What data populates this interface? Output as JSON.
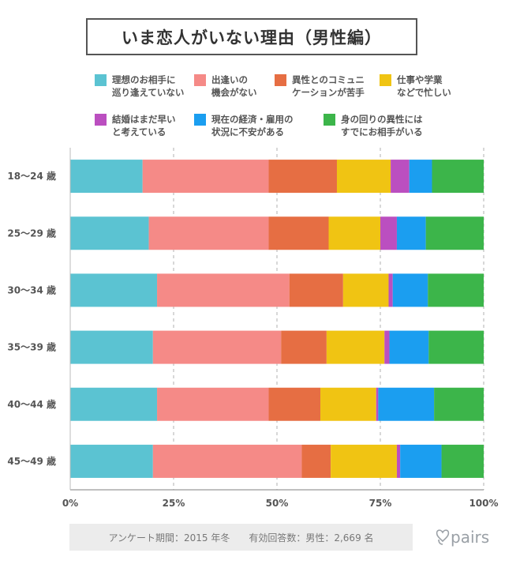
{
  "title": "いま恋人がいない理由（男性編）",
  "footer_text": "アンケート期間：2015 年冬　　有効回答数：男性：2,669 名",
  "logo_text": "pairs",
  "logo_icon": "pairs-heart-icon",
  "legend": [
    {
      "label": "理想のお相手に\n巡り逢えていない",
      "color": "#5bc3d2"
    },
    {
      "label": "出逢いの\n機会がない",
      "color": "#f58a87"
    },
    {
      "label": "異性とのコミュニ\nケーションが苦手",
      "color": "#e66e43"
    },
    {
      "label": "仕事や学業\nなどで忙しい",
      "color": "#f0c413"
    },
    {
      "label": "結婚はまだ早い\nと考えている",
      "color": "#bb4fc0"
    },
    {
      "label": "現在の経済・雇用の\n状況に不安がある",
      "color": "#1b9ef0"
    },
    {
      "label": "身の回りの異性には\nすでにお相手がいる",
      "color": "#3cb54a"
    }
  ],
  "chart_data": {
    "type": "bar",
    "orientation": "horizontal",
    "stacked": true,
    "title": "いま恋人がいない理由（男性編）",
    "xlabel": "",
    "ylabel": "",
    "xlim": [
      0,
      100
    ],
    "x_ticks": [
      "0%",
      "25%",
      "50%",
      "75%",
      "100%"
    ],
    "grid": "vertical-dashed",
    "legend_position": "top",
    "categories": [
      "18〜24 歳",
      "25〜29 歳",
      "30〜34 歳",
      "35〜39 歳",
      "40〜44 歳",
      "45〜49 歳"
    ],
    "series": [
      {
        "name": "理想のお相手に巡り逢えていない",
        "color": "#5bc3d2",
        "values": [
          17.5,
          19.0,
          21.0,
          20.0,
          21.0,
          20.0
        ]
      },
      {
        "name": "出逢いの機会がない",
        "color": "#f58a87",
        "values": [
          30.5,
          29.0,
          32.0,
          31.0,
          27.0,
          36.0
        ]
      },
      {
        "name": "異性とのコミュニケーションが苦手",
        "color": "#e66e43",
        "values": [
          16.5,
          14.5,
          13.0,
          11.0,
          12.5,
          7.0
        ]
      },
      {
        "name": "仕事や学業などで忙しい",
        "color": "#f0c413",
        "values": [
          13.0,
          12.5,
          11.0,
          14.0,
          13.5,
          16.0
        ]
      },
      {
        "name": "結婚はまだ早いと考えている",
        "color": "#bb4fc0",
        "values": [
          4.5,
          4.0,
          1.0,
          1.2,
          0.5,
          0.8
        ]
      },
      {
        "name": "現在の経済・雇用の状況に不安がある",
        "color": "#1b9ef0",
        "values": [
          5.5,
          7.0,
          8.5,
          9.5,
          13.5,
          10.0
        ]
      },
      {
        "name": "身の回りの異性にはすでにお相手がいる",
        "color": "#3cb54a",
        "values": [
          12.5,
          14.0,
          13.5,
          13.3,
          12.0,
          10.2
        ]
      }
    ]
  }
}
